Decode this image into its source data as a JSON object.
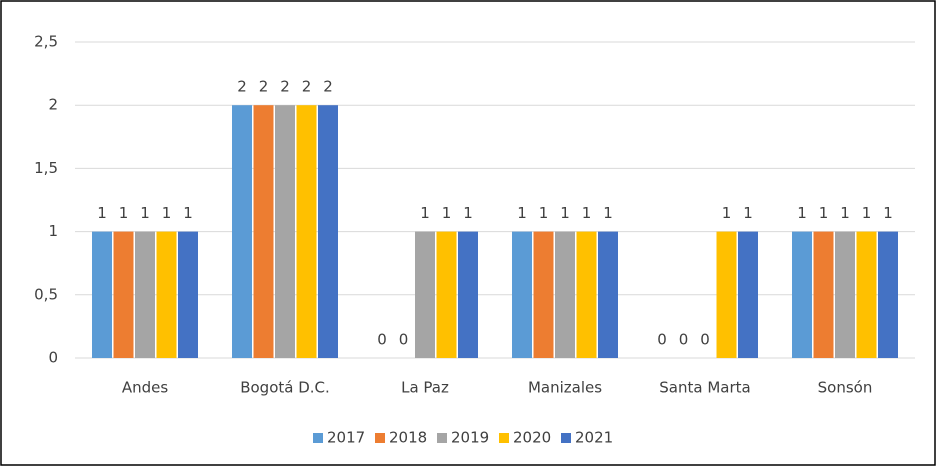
{
  "chart_data": {
    "type": "bar",
    "categories": [
      "Andes",
      "Bogotá D.C.",
      "La Paz",
      "Manizales",
      "Santa Marta",
      "Sonsón"
    ],
    "series": [
      {
        "name": "2017",
        "color": "#5b9bd5",
        "values": [
          1,
          2,
          0,
          1,
          0,
          1
        ]
      },
      {
        "name": "2018",
        "color": "#ed7d31",
        "values": [
          1,
          2,
          0,
          1,
          0,
          1
        ]
      },
      {
        "name": "2019",
        "color": "#a5a5a5",
        "values": [
          1,
          2,
          1,
          1,
          0,
          1
        ]
      },
      {
        "name": "2020",
        "color": "#ffc000",
        "values": [
          1,
          2,
          1,
          1,
          1,
          1
        ]
      },
      {
        "name": "2021",
        "color": "#4472c4",
        "values": [
          1,
          2,
          1,
          1,
          1,
          1
        ]
      }
    ],
    "ylim": [
      0,
      2.5
    ],
    "yticks": [
      0,
      {
        "value": 0.5,
        "label": "0,5"
      },
      1,
      {
        "value": 1.5,
        "label": "1,5"
      },
      2,
      {
        "value": 2.5,
        "label": "2,5"
      }
    ],
    "grid": true,
    "legend": "bottom"
  }
}
